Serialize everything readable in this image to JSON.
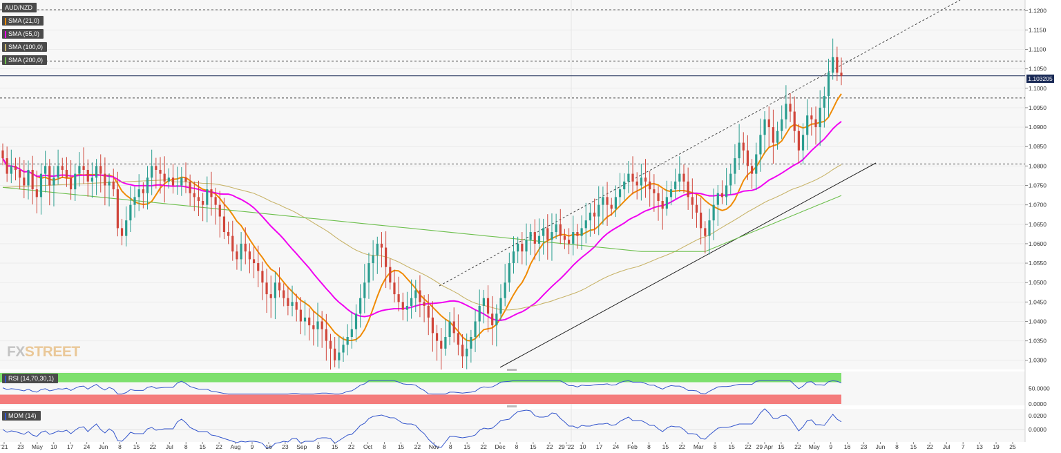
{
  "title": "AUD/NZD",
  "indicators": [
    {
      "label": "SMA (21,0)",
      "color": "#f08a00"
    },
    {
      "label": "SMA (55,0)",
      "color": "#f000f0"
    },
    {
      "label": "SMA (100,0)",
      "color": "#c8b46a"
    },
    {
      "label": "SMA (200,0)",
      "color": "#6cbf4c"
    }
  ],
  "last_price": "1.103205",
  "watermark": {
    "part1": "FX",
    "part2": "STREET"
  },
  "chart_data": [
    {
      "type": "candlestick",
      "panel": "price",
      "title": "AUD/NZD",
      "y_range": [
        1.028,
        1.122
      ],
      "y_ticks": [
        "1.1200",
        "1.1150",
        "1.1100",
        "1.1050",
        "1.1000",
        "1.0950",
        "1.0900",
        "1.0850",
        "1.0800",
        "1.0750",
        "1.0700",
        "1.0650",
        "1.0600",
        "1.0550",
        "1.0500",
        "1.0450",
        "1.0400",
        "1.0350",
        "1.0300"
      ],
      "x_tick_labels": [
        "'21",
        "23",
        "May",
        "10",
        "17",
        "24",
        "Jun",
        "8",
        "15",
        "22",
        "Jul",
        "8",
        "15",
        "22",
        "Aug",
        "9",
        "16",
        "23",
        "Sep",
        "8",
        "15",
        "22",
        "Oct",
        "8",
        "15",
        "22",
        "Nov",
        "8",
        "15",
        "22",
        "Dec",
        "8",
        "15",
        "22",
        "29 '22",
        "10",
        "17",
        "24",
        "Feb",
        "8",
        "15",
        "22",
        "Mar",
        "8",
        "15",
        "22",
        "29 Apr",
        "15",
        "22",
        "May",
        "9",
        "16",
        "23",
        "Jun",
        "8",
        "15",
        "22",
        "Jul",
        "7",
        "13",
        "19",
        "25"
      ],
      "horizontal_levels": [
        1.1202,
        1.107,
        1.0975,
        1.0805
      ],
      "current_price": 1.1032,
      "close_approx": [
        1.082,
        1.078,
        1.08,
        1.079,
        1.077,
        1.075,
        1.079,
        1.074,
        1.072,
        1.078,
        1.08,
        1.075,
        1.077,
        1.08,
        1.079,
        1.077,
        1.074,
        1.078,
        1.08,
        1.079,
        1.076,
        1.077,
        1.08,
        1.078,
        1.075,
        1.076,
        1.074,
        1.064,
        1.062,
        1.066,
        1.07,
        1.072,
        1.074,
        1.073,
        1.077,
        1.08,
        1.079,
        1.078,
        1.076,
        1.077,
        1.075,
        1.075,
        1.077,
        1.076,
        1.073,
        1.072,
        1.071,
        1.07,
        1.074,
        1.072,
        1.07,
        1.067,
        1.063,
        1.062,
        1.058,
        1.056,
        1.06,
        1.058,
        1.056,
        1.055,
        1.053,
        1.05,
        1.047,
        1.046,
        1.05,
        1.048,
        1.046,
        1.044,
        1.045,
        1.043,
        1.04,
        1.041,
        1.039,
        1.038,
        1.04,
        1.038,
        1.035,
        1.033,
        1.03,
        1.032,
        1.034,
        1.036,
        1.038,
        1.042,
        1.046,
        1.05,
        1.055,
        1.057,
        1.06,
        1.059,
        1.054,
        1.05,
        1.047,
        1.045,
        1.043,
        1.044,
        1.046,
        1.048,
        1.045,
        1.044,
        1.041,
        1.037,
        1.035,
        1.033,
        1.036,
        1.04,
        1.037,
        1.034,
        1.031,
        1.033,
        1.036,
        1.04,
        1.044,
        1.046,
        1.042,
        1.039,
        1.042,
        1.046,
        1.05,
        1.055,
        1.058,
        1.06,
        1.058,
        1.061,
        1.063,
        1.06,
        1.062,
        1.064,
        1.061,
        1.063,
        1.065,
        1.062,
        1.061,
        1.06,
        1.063,
        1.062,
        1.064,
        1.066,
        1.068,
        1.067,
        1.07,
        1.072,
        1.07,
        1.069,
        1.072,
        1.074,
        1.076,
        1.078,
        1.076,
        1.075,
        1.077,
        1.076,
        1.074,
        1.073,
        1.071,
        1.069,
        1.072,
        1.074,
        1.076,
        1.078,
        1.076,
        1.072,
        1.07,
        1.068,
        1.064,
        1.062,
        1.066,
        1.07,
        1.073,
        1.072,
        1.075,
        1.078,
        1.082,
        1.086,
        1.084,
        1.08,
        1.078,
        1.083,
        1.088,
        1.092,
        1.09,
        1.086,
        1.089,
        1.092,
        1.096,
        1.094,
        1.089,
        1.084,
        1.088,
        1.093,
        1.092,
        1.09,
        1.095,
        1.098,
        1.104,
        1.108,
        1.104,
        1.1032
      ],
      "series": [
        {
          "name": "SMA (21,0)",
          "color": "#f08a00"
        },
        {
          "name": "SMA (55,0)",
          "color": "#f000f0"
        },
        {
          "name": "SMA (100,0)",
          "color": "#c8b46a"
        },
        {
          "name": "SMA (200,0)",
          "color": "#6cbf4c"
        }
      ]
    },
    {
      "type": "line",
      "panel": "rsi",
      "label": "RSI (14,70,30,1)",
      "y_ticks": [
        "50.0000",
        "0.0000"
      ],
      "y_range": [
        0,
        100
      ],
      "overbought": 70,
      "oversold": 30
    },
    {
      "type": "line",
      "panel": "momentum",
      "label": "MOM (14)",
      "y_ticks": [
        "0.0200",
        "0.0000"
      ]
    }
  ]
}
